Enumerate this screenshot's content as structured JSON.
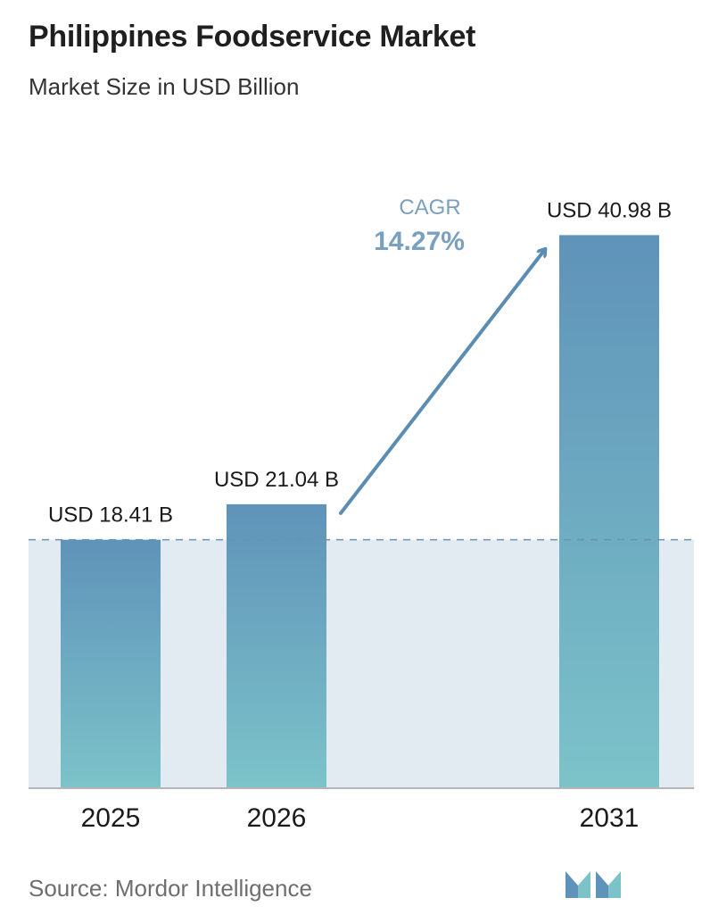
{
  "header": {
    "title": "Philippines Foodservice Market",
    "subtitle": "Market Size in USD Billion"
  },
  "chart_data": {
    "type": "bar",
    "categories": [
      "2025",
      "2026",
      "2031"
    ],
    "values": [
      18.41,
      21.04,
      40.98
    ],
    "data_labels": [
      "USD 18.41 B",
      "USD 21.04 B",
      "USD 40.98 B"
    ],
    "title": "Philippines Foodservice Market",
    "subtitle": "Market Size in USD Billion",
    "xlabel": "",
    "ylabel": "",
    "ylim": [
      0,
      45
    ],
    "grid": false,
    "annotation": {
      "label": "CAGR",
      "value": "14.27%"
    }
  },
  "colors": {
    "bar_top": "#5f93b9",
    "bar_bottom": "#7cc3c9",
    "band": "#e2eaf2",
    "arrow": "#5b8db3",
    "cagr_label": "#7aa0bf",
    "dashed_line": "#6a93b3",
    "axis": "#b5b5b5"
  },
  "footer": {
    "source": "Source:  Mordor Intelligence"
  }
}
